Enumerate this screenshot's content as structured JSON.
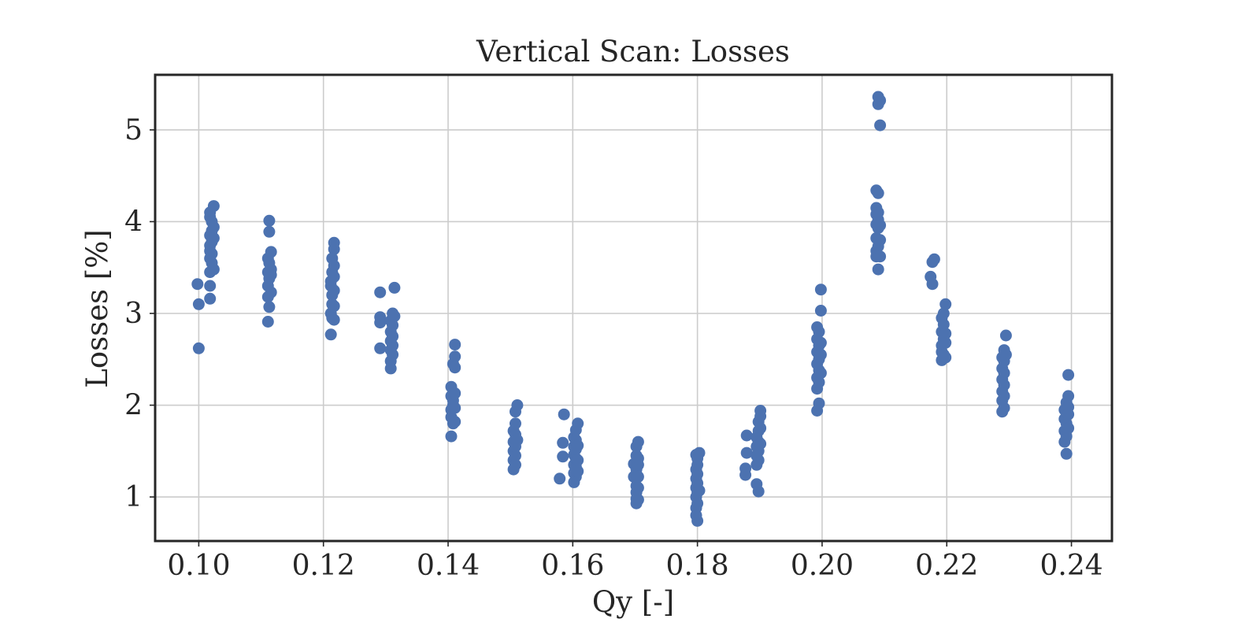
{
  "chart_data": {
    "type": "scatter",
    "title": "Vertical Scan: Losses",
    "xlabel": "Qy [-]",
    "ylabel": "Losses [%]",
    "xlim": [
      0.093,
      0.2465
    ],
    "ylim": [
      0.52,
      5.6
    ],
    "xticks": [
      "0.10",
      "0.12",
      "0.14",
      "0.16",
      "0.18",
      "0.20",
      "0.22",
      "0.24"
    ],
    "yticks": [
      "1",
      "2",
      "3",
      "4",
      "5"
    ],
    "grid": true,
    "marker_color": "#4c72b0",
    "series": [
      {
        "points": [
          [
            0.0998,
            3.32
          ],
          [
            0.1,
            3.1
          ],
          [
            0.1,
            2.62
          ],
          [
            0.1018,
            3.16
          ],
          [
            0.1018,
            3.3
          ],
          [
            0.1018,
            3.45
          ],
          [
            0.1018,
            3.6
          ],
          [
            0.1018,
            3.68
          ],
          [
            0.1018,
            3.74
          ],
          [
            0.1018,
            3.85
          ],
          [
            0.1018,
            4.05
          ],
          [
            0.1018,
            4.1
          ],
          [
            0.1021,
            3.55
          ],
          [
            0.1021,
            3.65
          ],
          [
            0.1021,
            3.78
          ],
          [
            0.1021,
            3.9
          ],
          [
            0.1021,
            4.0
          ],
          [
            0.1024,
            3.48
          ],
          [
            0.1024,
            3.82
          ],
          [
            0.1024,
            3.94
          ],
          [
            0.1024,
            4.17
          ],
          [
            0.1111,
            2.91
          ],
          [
            0.1111,
            3.18
          ],
          [
            0.1111,
            3.3
          ],
          [
            0.1111,
            3.45
          ],
          [
            0.1111,
            3.6
          ],
          [
            0.1113,
            3.07
          ],
          [
            0.1113,
            3.38
          ],
          [
            0.1113,
            3.55
          ],
          [
            0.1113,
            3.89
          ],
          [
            0.1113,
            4.01
          ],
          [
            0.1116,
            3.23
          ],
          [
            0.1116,
            3.42
          ],
          [
            0.1116,
            3.48
          ],
          [
            0.1116,
            3.67
          ],
          [
            0.1212,
            2.77
          ],
          [
            0.1212,
            3.0
          ],
          [
            0.1212,
            3.3
          ],
          [
            0.1212,
            3.35
          ],
          [
            0.1214,
            2.95
          ],
          [
            0.1214,
            3.1
          ],
          [
            0.1214,
            3.2
          ],
          [
            0.1214,
            3.45
          ],
          [
            0.1214,
            3.6
          ],
          [
            0.1217,
            2.93
          ],
          [
            0.1217,
            3.08
          ],
          [
            0.1217,
            3.25
          ],
          [
            0.1217,
            3.4
          ],
          [
            0.1217,
            3.52
          ],
          [
            0.1217,
            3.7
          ],
          [
            0.1217,
            3.77
          ],
          [
            0.1291,
            3.23
          ],
          [
            0.1291,
            2.96
          ],
          [
            0.1291,
            2.9
          ],
          [
            0.1291,
            2.62
          ],
          [
            0.1308,
            2.4
          ],
          [
            0.1308,
            2.48
          ],
          [
            0.1308,
            2.6
          ],
          [
            0.1308,
            2.7
          ],
          [
            0.1308,
            2.8
          ],
          [
            0.1308,
            2.92
          ],
          [
            0.1311,
            2.55
          ],
          [
            0.1311,
            2.65
          ],
          [
            0.1311,
            2.75
          ],
          [
            0.1311,
            2.87
          ],
          [
            0.1311,
            3.0
          ],
          [
            0.1314,
            3.28
          ],
          [
            0.1314,
            2.97
          ],
          [
            0.1405,
            1.66
          ],
          [
            0.1405,
            1.87
          ],
          [
            0.1405,
            1.95
          ],
          [
            0.1405,
            2.1
          ],
          [
            0.1405,
            2.2
          ],
          [
            0.1408,
            1.8
          ],
          [
            0.1408,
            2.0
          ],
          [
            0.1408,
            2.05
          ],
          [
            0.1408,
            2.45
          ],
          [
            0.1411,
            1.82
          ],
          [
            0.1411,
            1.97
          ],
          [
            0.1411,
            2.13
          ],
          [
            0.1411,
            2.41
          ],
          [
            0.1411,
            2.53
          ],
          [
            0.1411,
            2.66
          ],
          [
            0.1505,
            1.3
          ],
          [
            0.1505,
            1.4
          ],
          [
            0.1505,
            1.5
          ],
          [
            0.1505,
            1.6
          ],
          [
            0.1505,
            1.72
          ],
          [
            0.1508,
            1.35
          ],
          [
            0.1508,
            1.45
          ],
          [
            0.1508,
            1.55
          ],
          [
            0.1508,
            1.68
          ],
          [
            0.1508,
            1.8
          ],
          [
            0.1508,
            1.93
          ],
          [
            0.1511,
            1.62
          ],
          [
            0.1511,
            2.0
          ],
          [
            0.1579,
            1.2
          ],
          [
            0.1584,
            1.44
          ],
          [
            0.1584,
            1.59
          ],
          [
            0.1586,
            1.9
          ],
          [
            0.1602,
            1.16
          ],
          [
            0.1602,
            1.26
          ],
          [
            0.1602,
            1.35
          ],
          [
            0.1602,
            1.46
          ],
          [
            0.1602,
            1.55
          ],
          [
            0.1602,
            1.65
          ],
          [
            0.1605,
            1.22
          ],
          [
            0.1605,
            1.33
          ],
          [
            0.1605,
            1.42
          ],
          [
            0.1605,
            1.52
          ],
          [
            0.1605,
            1.62
          ],
          [
            0.1605,
            1.73
          ],
          [
            0.1608,
            1.28
          ],
          [
            0.1608,
            1.4
          ],
          [
            0.1608,
            1.56
          ],
          [
            0.1608,
            1.8
          ],
          [
            0.1698,
            1.22
          ],
          [
            0.1698,
            1.36
          ],
          [
            0.1702,
            0.93
          ],
          [
            0.1702,
            0.98
          ],
          [
            0.1702,
            1.05
          ],
          [
            0.1702,
            1.12
          ],
          [
            0.1702,
            1.25
          ],
          [
            0.1702,
            1.3
          ],
          [
            0.1702,
            1.45
          ],
          [
            0.1702,
            1.55
          ],
          [
            0.1705,
            0.97
          ],
          [
            0.1705,
            1.1
          ],
          [
            0.1705,
            1.22
          ],
          [
            0.1705,
            1.35
          ],
          [
            0.1705,
            1.42
          ],
          [
            0.1705,
            1.6
          ],
          [
            0.1798,
            0.8
          ],
          [
            0.1798,
            0.88
          ],
          [
            0.1798,
            1.0
          ],
          [
            0.1798,
            1.1
          ],
          [
            0.1798,
            1.2
          ],
          [
            0.1798,
            1.3
          ],
          [
            0.1798,
            1.46
          ],
          [
            0.18,
            0.74
          ],
          [
            0.18,
            0.93
          ],
          [
            0.18,
            1.05
          ],
          [
            0.18,
            1.15
          ],
          [
            0.18,
            1.25
          ],
          [
            0.18,
            1.35
          ],
          [
            0.18,
            1.42
          ],
          [
            0.1803,
            1.07
          ],
          [
            0.1803,
            1.48
          ],
          [
            0.1877,
            1.24
          ],
          [
            0.1877,
            1.31
          ],
          [
            0.1879,
            1.48
          ],
          [
            0.1879,
            1.67
          ],
          [
            0.1895,
            1.35
          ],
          [
            0.1895,
            1.45
          ],
          [
            0.1895,
            1.55
          ],
          [
            0.1895,
            1.65
          ],
          [
            0.1895,
            1.14
          ],
          [
            0.1898,
            1.4
          ],
          [
            0.1898,
            1.5
          ],
          [
            0.1898,
            1.6
          ],
          [
            0.1898,
            1.72
          ],
          [
            0.1898,
            1.82
          ],
          [
            0.1898,
            1.06
          ],
          [
            0.1901,
            1.58
          ],
          [
            0.1901,
            1.75
          ],
          [
            0.1901,
            1.88
          ],
          [
            0.1901,
            1.94
          ],
          [
            0.1992,
            1.94
          ],
          [
            0.1992,
            2.18
          ],
          [
            0.1992,
            2.3
          ],
          [
            0.1992,
            2.45
          ],
          [
            0.1992,
            2.58
          ],
          [
            0.1992,
            2.72
          ],
          [
            0.1992,
            2.85
          ],
          [
            0.1995,
            2.02
          ],
          [
            0.1995,
            2.25
          ],
          [
            0.1995,
            2.38
          ],
          [
            0.1995,
            2.5
          ],
          [
            0.1995,
            2.65
          ],
          [
            0.1995,
            2.8
          ],
          [
            0.1998,
            2.35
          ],
          [
            0.1998,
            2.55
          ],
          [
            0.1998,
            2.68
          ],
          [
            0.1998,
            3.03
          ],
          [
            0.1998,
            3.26
          ],
          [
            0.2087,
            3.62
          ],
          [
            0.2087,
            3.68
          ],
          [
            0.2087,
            3.82
          ],
          [
            0.2087,
            3.97
          ],
          [
            0.2087,
            4.08
          ],
          [
            0.2087,
            4.15
          ],
          [
            0.2087,
            4.34
          ],
          [
            0.209,
            3.48
          ],
          [
            0.209,
            3.73
          ],
          [
            0.209,
            3.93
          ],
          [
            0.209,
            4.02
          ],
          [
            0.209,
            4.1
          ],
          [
            0.209,
            4.31
          ],
          [
            0.209,
            5.28
          ],
          [
            0.209,
            5.36
          ],
          [
            0.2093,
            3.62
          ],
          [
            0.2093,
            3.8
          ],
          [
            0.2093,
            3.96
          ],
          [
            0.2093,
            5.05
          ],
          [
            0.2093,
            5.32
          ],
          [
            0.2174,
            3.4
          ],
          [
            0.2177,
            3.32
          ],
          [
            0.2177,
            3.56
          ],
          [
            0.218,
            3.59
          ],
          [
            0.2192,
            2.49
          ],
          [
            0.2192,
            2.58
          ],
          [
            0.2192,
            2.65
          ],
          [
            0.2192,
            2.8
          ],
          [
            0.2192,
            2.95
          ],
          [
            0.2195,
            2.55
          ],
          [
            0.2195,
            2.72
          ],
          [
            0.2195,
            2.88
          ],
          [
            0.2195,
            3.0
          ],
          [
            0.2198,
            2.52
          ],
          [
            0.2198,
            2.68
          ],
          [
            0.2198,
            2.78
          ],
          [
            0.2198,
            3.1
          ],
          [
            0.2289,
            1.93
          ],
          [
            0.2289,
            2.05
          ],
          [
            0.2289,
            2.15
          ],
          [
            0.2289,
            2.28
          ],
          [
            0.2289,
            2.4
          ],
          [
            0.2289,
            2.52
          ],
          [
            0.2292,
            1.97
          ],
          [
            0.2292,
            2.1
          ],
          [
            0.2292,
            2.22
          ],
          [
            0.2292,
            2.35
          ],
          [
            0.2292,
            2.48
          ],
          [
            0.2292,
            2.6
          ],
          [
            0.2295,
            2.55
          ],
          [
            0.2295,
            2.76
          ],
          [
            0.2389,
            1.6
          ],
          [
            0.2389,
            1.72
          ],
          [
            0.2389,
            1.85
          ],
          [
            0.2389,
            1.95
          ],
          [
            0.2392,
            1.47
          ],
          [
            0.2392,
            1.66
          ],
          [
            0.2392,
            1.8
          ],
          [
            0.2392,
            1.92
          ],
          [
            0.2392,
            2.03
          ],
          [
            0.2395,
            1.75
          ],
          [
            0.2395,
            1.9
          ],
          [
            0.2395,
            1.98
          ],
          [
            0.2395,
            2.1
          ],
          [
            0.2395,
            2.33
          ]
        ]
      }
    ]
  }
}
